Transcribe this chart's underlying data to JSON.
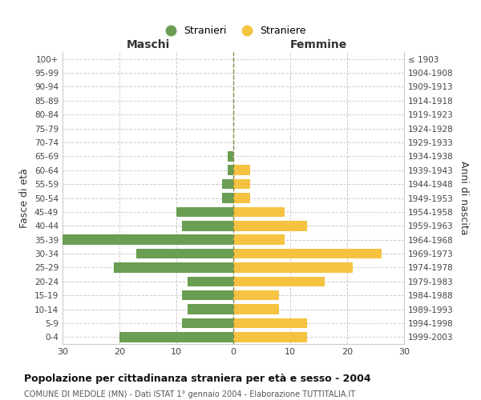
{
  "age_groups_bottom_to_top": [
    "0-4",
    "5-9",
    "10-14",
    "15-19",
    "20-24",
    "25-29",
    "30-34",
    "35-39",
    "40-44",
    "45-49",
    "50-54",
    "55-59",
    "60-64",
    "65-69",
    "70-74",
    "75-79",
    "80-84",
    "85-89",
    "90-94",
    "95-99",
    "100+"
  ],
  "birth_years_bottom_to_top": [
    "1999-2003",
    "1994-1998",
    "1989-1993",
    "1984-1988",
    "1979-1983",
    "1974-1978",
    "1969-1973",
    "1964-1968",
    "1959-1963",
    "1954-1958",
    "1949-1953",
    "1944-1948",
    "1939-1943",
    "1934-1938",
    "1929-1933",
    "1924-1928",
    "1919-1923",
    "1914-1918",
    "1909-1913",
    "1904-1908",
    "≤ 1903"
  ],
  "males_bottom_to_top": [
    20,
    9,
    8,
    9,
    8,
    21,
    17,
    30,
    9,
    10,
    2,
    2,
    1,
    1,
    0,
    0,
    0,
    0,
    0,
    0,
    0
  ],
  "females_bottom_to_top": [
    13,
    13,
    8,
    8,
    16,
    21,
    26,
    9,
    13,
    9,
    3,
    3,
    3,
    0,
    0,
    0,
    0,
    0,
    0,
    0,
    0
  ],
  "male_color": "#6a9e52",
  "female_color": "#f5c242",
  "title": "Popolazione per cittadinanza straniera per età e sesso - 2004",
  "subtitle": "COMUNE DI MEDOLE (MN) - Dati ISTAT 1° gennaio 2004 - Elaborazione TUTTITALIA.IT",
  "xlabel_left": "Maschi",
  "xlabel_right": "Femmine",
  "ylabel_left": "Fasce di età",
  "ylabel_right": "Anni di nascita",
  "legend_male": "Stranieri",
  "legend_female": "Straniere",
  "xlim": 30,
  "background_color": "#ffffff",
  "grid_color": "#cccccc",
  "bar_height": 0.72
}
